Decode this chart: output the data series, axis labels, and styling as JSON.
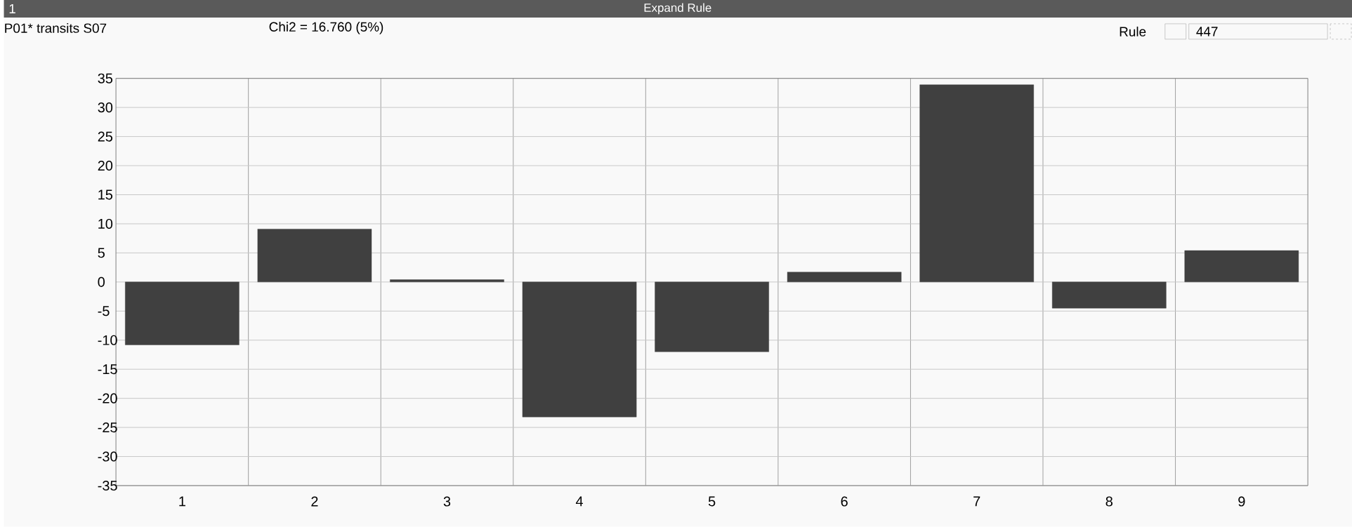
{
  "chart_data": {
    "type": "bar",
    "title": "Expand Rule",
    "annotations": [
      "1",
      "P01* transits S07",
      "Chi2 = 16.760 (5%)",
      "Rule",
      "447"
    ],
    "categories": [
      "1",
      "2",
      "3",
      "4",
      "5",
      "6",
      "7",
      "8",
      "9"
    ],
    "values": [
      -10.8,
      9.1,
      0.4,
      -23.2,
      -12,
      1.7,
      33.9,
      -4.5,
      5.4
    ],
    "color": "#404040",
    "ylim": [
      -35,
      35
    ],
    "yticks": [
      -35,
      -30,
      -25,
      -20,
      -15,
      -10,
      -5,
      0,
      5,
      10,
      15,
      20,
      25,
      30,
      35
    ],
    "grid": true
  }
}
